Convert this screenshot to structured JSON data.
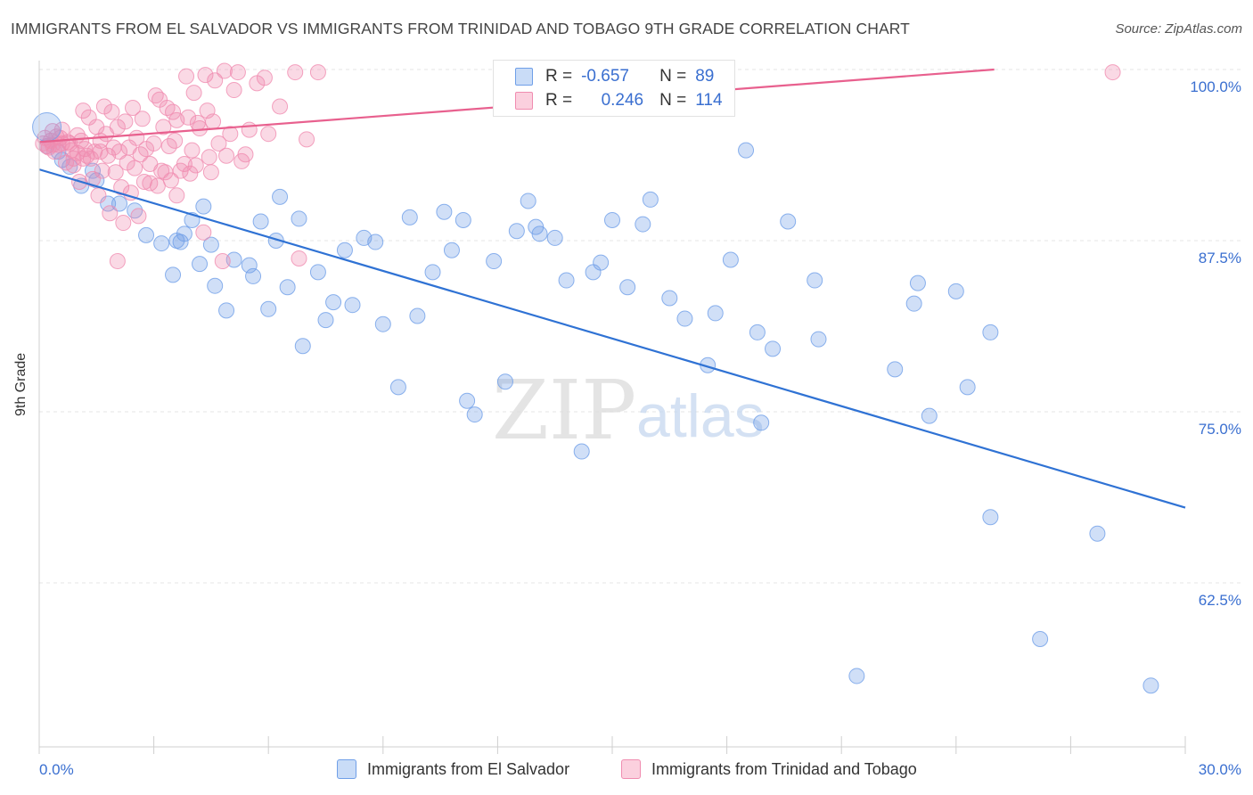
{
  "title": "IMMIGRANTS FROM EL SALVADOR VS IMMIGRANTS FROM TRINIDAD AND TOBAGO 9TH GRADE CORRELATION CHART",
  "source": "Source: ZipAtlas.com",
  "watermark": {
    "zip": "ZIP",
    "atlas": "atlas"
  },
  "legend": {
    "rows": [
      {
        "r_label": "R =",
        "r_value": "-0.657",
        "n_label": "N =",
        "n_value": "89",
        "color": "#6f9fe8"
      },
      {
        "r_label": "R =",
        "r_value": "0.246",
        "n_label": "N =",
        "n_value": "114",
        "color": "#f08cb0"
      }
    ]
  },
  "bottom_legend": {
    "series1": "Immigrants from El Salvador",
    "series2": "Immigrants from Trinidad and Tobago"
  },
  "chart_data": {
    "type": "scatter",
    "title": "IMMIGRANTS FROM EL SALVADOR VS IMMIGRANTS FROM TRINIDAD AND TOBAGO 9TH GRADE CORRELATION CHART",
    "xlabel": "",
    "ylabel": "9th Grade",
    "xlim": [
      0,
      30
    ],
    "ylim": [
      50,
      100
    ],
    "x_tick_labels": [
      "0.0%",
      "30.0%"
    ],
    "y_ticks": [
      62.5,
      75.0,
      87.5,
      100.0
    ],
    "y_tick_labels": [
      "62.5%",
      "75.0%",
      "87.5%",
      "100.0%"
    ],
    "grid": true,
    "legend_position": "top-center",
    "colors": {
      "blue": "#6f9fe8",
      "blue_line": "#2f72d4",
      "pink": "#f08cb0",
      "pink_line": "#e8608e"
    },
    "series": [
      {
        "name": "Immigrants from El Salvador",
        "color": "blue",
        "trend": {
          "x": [
            0,
            30
          ],
          "y": [
            92.7,
            68.0
          ]
        },
        "points": [
          [
            0.2,
            94.4
          ],
          [
            0.5,
            94.0
          ],
          [
            0.6,
            93.4
          ],
          [
            0.8,
            92.9
          ],
          [
            1.1,
            91.5
          ],
          [
            1.4,
            92.6
          ],
          [
            1.5,
            91.9
          ],
          [
            1.8,
            90.2
          ],
          [
            2.1,
            90.2
          ],
          [
            2.5,
            89.7
          ],
          [
            2.8,
            87.9
          ],
          [
            3.2,
            87.3
          ],
          [
            3.5,
            85.0
          ],
          [
            3.6,
            87.5
          ],
          [
            3.7,
            87.4
          ],
          [
            3.8,
            88.0
          ],
          [
            4.0,
            89.0
          ],
          [
            4.2,
            85.8
          ],
          [
            4.3,
            90.0
          ],
          [
            4.5,
            87.2
          ],
          [
            4.6,
            84.2
          ],
          [
            4.9,
            82.4
          ],
          [
            5.1,
            86.1
          ],
          [
            5.5,
            85.7
          ],
          [
            5.6,
            84.9
          ],
          [
            5.8,
            88.9
          ],
          [
            6.0,
            82.5
          ],
          [
            6.2,
            87.5
          ],
          [
            6.3,
            90.7
          ],
          [
            6.5,
            84.1
          ],
          [
            6.8,
            89.1
          ],
          [
            6.9,
            79.8
          ],
          [
            7.3,
            85.2
          ],
          [
            7.5,
            81.7
          ],
          [
            7.7,
            83.0
          ],
          [
            8.0,
            86.8
          ],
          [
            8.2,
            82.8
          ],
          [
            8.5,
            87.7
          ],
          [
            8.8,
            87.4
          ],
          [
            9.0,
            81.4
          ],
          [
            9.4,
            76.8
          ],
          [
            9.7,
            89.2
          ],
          [
            9.9,
            82.0
          ],
          [
            10.3,
            85.2
          ],
          [
            10.6,
            89.6
          ],
          [
            10.8,
            86.8
          ],
          [
            11.1,
            89.0
          ],
          [
            11.2,
            75.8
          ],
          [
            11.4,
            74.8
          ],
          [
            11.9,
            86.0
          ],
          [
            12.2,
            77.2
          ],
          [
            12.5,
            88.2
          ],
          [
            12.8,
            90.4
          ],
          [
            13.0,
            88.5
          ],
          [
            13.1,
            88.0
          ],
          [
            13.5,
            87.7
          ],
          [
            13.8,
            84.6
          ],
          [
            14.2,
            72.1
          ],
          [
            14.5,
            85.2
          ],
          [
            14.7,
            85.9
          ],
          [
            15.0,
            89.0
          ],
          [
            15.4,
            84.1
          ],
          [
            15.8,
            88.7
          ],
          [
            16.0,
            90.5
          ],
          [
            16.5,
            83.3
          ],
          [
            16.9,
            81.8
          ],
          [
            17.5,
            78.4
          ],
          [
            17.7,
            82.2
          ],
          [
            18.1,
            86.1
          ],
          [
            18.5,
            94.1
          ],
          [
            18.8,
            80.8
          ],
          [
            18.9,
            74.2
          ],
          [
            19.2,
            79.6
          ],
          [
            19.6,
            88.9
          ],
          [
            20.3,
            84.6
          ],
          [
            20.4,
            80.3
          ],
          [
            21.4,
            55.7
          ],
          [
            22.4,
            78.1
          ],
          [
            22.9,
            82.9
          ],
          [
            23.0,
            84.4
          ],
          [
            23.3,
            74.7
          ],
          [
            24.0,
            83.8
          ],
          [
            24.3,
            76.8
          ],
          [
            24.9,
            80.8
          ],
          [
            24.9,
            67.3
          ],
          [
            26.2,
            58.4
          ],
          [
            27.7,
            66.1
          ],
          [
            29.1,
            55.0
          ]
        ]
      },
      {
        "name": "Immigrants from Trinidad and Tobago",
        "color": "pink",
        "trend": {
          "x": [
            0,
            25
          ],
          "y": [
            94.7,
            100.0
          ]
        },
        "points": [
          [
            0.1,
            94.6
          ],
          [
            0.15,
            95.0
          ],
          [
            0.2,
            94.4
          ],
          [
            0.3,
            94.8
          ],
          [
            0.35,
            95.5
          ],
          [
            0.4,
            94.0
          ],
          [
            0.5,
            94.5
          ],
          [
            0.6,
            95.6
          ],
          [
            0.7,
            93.2
          ],
          [
            0.8,
            94.6
          ],
          [
            0.9,
            93.5
          ],
          [
            1.0,
            95.2
          ],
          [
            1.05,
            91.8
          ],
          [
            1.1,
            94.8
          ],
          [
            1.15,
            97.0
          ],
          [
            1.2,
            94.2
          ],
          [
            1.3,
            96.5
          ],
          [
            1.35,
            93.5
          ],
          [
            1.4,
            92.0
          ],
          [
            1.5,
            95.8
          ],
          [
            1.55,
            90.8
          ],
          [
            1.6,
            94.0
          ],
          [
            1.65,
            92.6
          ],
          [
            1.7,
            97.3
          ],
          [
            1.75,
            95.3
          ],
          [
            1.8,
            93.7
          ],
          [
            1.85,
            89.5
          ],
          [
            1.9,
            96.9
          ],
          [
            1.95,
            94.3
          ],
          [
            2.0,
            92.5
          ],
          [
            2.05,
            95.8
          ],
          [
            2.1,
            94.0
          ],
          [
            2.15,
            91.4
          ],
          [
            2.2,
            88.8
          ],
          [
            2.25,
            96.2
          ],
          [
            2.3,
            93.2
          ],
          [
            2.35,
            94.3
          ],
          [
            2.4,
            91.0
          ],
          [
            2.45,
            97.2
          ],
          [
            2.5,
            92.8
          ],
          [
            2.55,
            95.0
          ],
          [
            2.6,
            89.3
          ],
          [
            2.65,
            93.8
          ],
          [
            2.7,
            96.4
          ],
          [
            2.75,
            91.8
          ],
          [
            2.8,
            94.2
          ],
          [
            2.9,
            93.1
          ],
          [
            3.0,
            94.6
          ],
          [
            3.05,
            98.1
          ],
          [
            3.1,
            91.5
          ],
          [
            3.15,
            97.8
          ],
          [
            3.2,
            92.6
          ],
          [
            3.25,
            95.8
          ],
          [
            3.3,
            92.5
          ],
          [
            3.35,
            97.2
          ],
          [
            3.4,
            94.4
          ],
          [
            3.45,
            91.9
          ],
          [
            3.5,
            96.9
          ],
          [
            3.55,
            94.8
          ],
          [
            3.6,
            90.8
          ],
          [
            3.7,
            92.6
          ],
          [
            3.8,
            93.1
          ],
          [
            3.85,
            99.5
          ],
          [
            3.9,
            96.5
          ],
          [
            3.95,
            92.4
          ],
          [
            4.0,
            94.1
          ],
          [
            4.05,
            98.3
          ],
          [
            4.1,
            93.0
          ],
          [
            4.15,
            96.1
          ],
          [
            4.2,
            95.7
          ],
          [
            4.3,
            88.1
          ],
          [
            4.35,
            99.6
          ],
          [
            4.4,
            97.0
          ],
          [
            4.45,
            93.6
          ],
          [
            4.5,
            92.5
          ],
          [
            4.55,
            96.2
          ],
          [
            4.6,
            99.2
          ],
          [
            4.7,
            94.6
          ],
          [
            4.8,
            86.0
          ],
          [
            4.9,
            93.7
          ],
          [
            5.0,
            95.3
          ],
          [
            5.1,
            98.5
          ],
          [
            5.2,
            99.8
          ],
          [
            5.3,
            93.3
          ],
          [
            5.4,
            93.8
          ],
          [
            5.5,
            95.6
          ],
          [
            5.7,
            99.0
          ],
          [
            5.9,
            99.4
          ],
          [
            6.0,
            95.3
          ],
          [
            6.3,
            97.3
          ],
          [
            6.7,
            99.8
          ],
          [
            6.8,
            86.2
          ],
          [
            7.0,
            94.9
          ],
          [
            7.3,
            99.8
          ],
          [
            28.1,
            99.8
          ],
          [
            2.05,
            86.0
          ],
          [
            0.9,
            93.0
          ],
          [
            1.25,
            93.7
          ],
          [
            2.9,
            91.7
          ],
          [
            3.6,
            96.3
          ],
          [
            0.45,
            95.1
          ],
          [
            0.75,
            94.7
          ],
          [
            1.45,
            94.0
          ],
          [
            1.0,
            93.9
          ],
          [
            0.55,
            95.0
          ],
          [
            0.25,
            94.3
          ],
          [
            0.6,
            94.6
          ],
          [
            0.35,
            94.5
          ],
          [
            0.85,
            94.1
          ],
          [
            1.15,
            93.5
          ],
          [
            1.6,
            94.8
          ],
          [
            4.85,
            99.9
          ]
        ]
      }
    ]
  }
}
